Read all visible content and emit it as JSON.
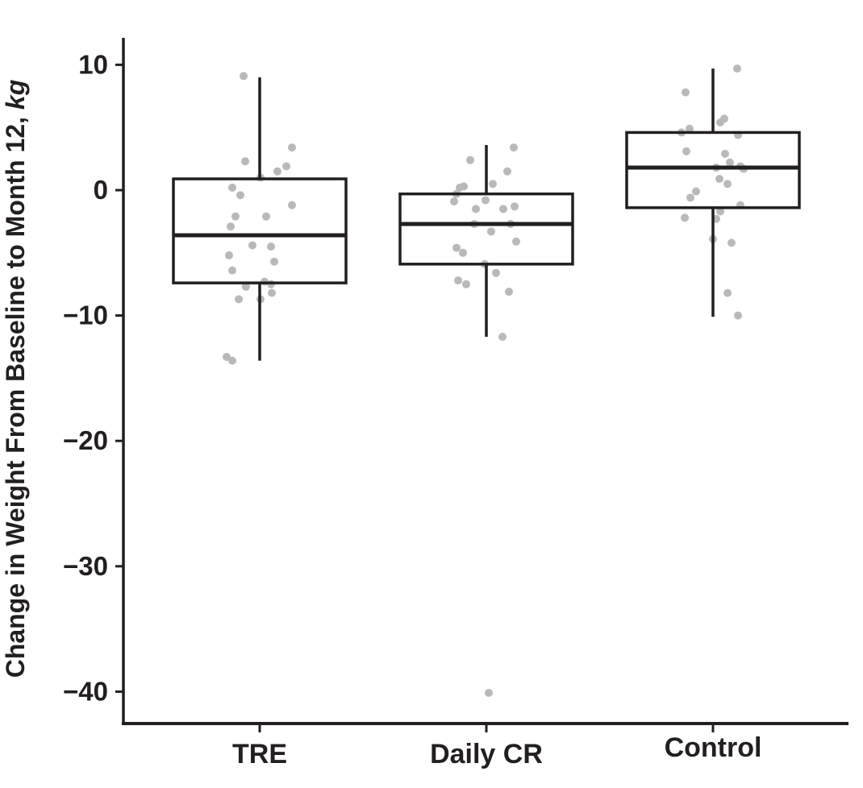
{
  "chart_data": {
    "type": "boxplot",
    "title": "",
    "xlabel": "",
    "ylabel_main": "Change in Weight From Baseline to Month 12, ",
    "ylabel_unit": "kg",
    "ylim": [
      -43,
      12
    ],
    "yticks": [
      10,
      0,
      -10,
      -20,
      -30,
      -40
    ],
    "ytick_labels": [
      "10",
      "0",
      "−10",
      "−20",
      "−30",
      "−40"
    ],
    "categories": [
      "TRE",
      "Daily CR",
      "Control"
    ],
    "grid": false,
    "legend": "none",
    "colors": {
      "line": "#231f20",
      "point": "#b9b9b9",
      "background": "#ffffff"
    },
    "series": [
      {
        "name": "TRE",
        "whisker_high": 9.0,
        "q3": 0.9,
        "median": -3.6,
        "q1": -7.4,
        "whisker_low": -13.6,
        "points": [
          [
            -20,
            9.1
          ],
          [
            40,
            3.4
          ],
          [
            -18,
            2.3
          ],
          [
            33,
            1.9
          ],
          [
            22,
            1.5
          ],
          [
            1,
            1.0
          ],
          [
            -34,
            0.2
          ],
          [
            -24,
            -0.4
          ],
          [
            40,
            -1.2
          ],
          [
            -30,
            -2.1
          ],
          [
            8,
            -2.1
          ],
          [
            -36,
            -2.9
          ],
          [
            -9,
            -4.4
          ],
          [
            14,
            -4.5
          ],
          [
            -38,
            -5.2
          ],
          [
            18,
            -5.7
          ],
          [
            -34,
            -6.4
          ],
          [
            6,
            -7.3
          ],
          [
            14,
            -7.5
          ],
          [
            -17,
            -7.7
          ],
          [
            15,
            -8.2
          ],
          [
            -26,
            -8.7
          ],
          [
            1,
            -8.7
          ],
          [
            -41,
            -13.3
          ],
          [
            -34,
            -13.6
          ]
        ]
      },
      {
        "name": "Daily CR",
        "whisker_high": 3.6,
        "q3": -0.3,
        "median": -2.7,
        "q1": -5.9,
        "whisker_low": -11.7,
        "points": [
          [
            34,
            3.4
          ],
          [
            -20,
            2.4
          ],
          [
            26,
            1.5
          ],
          [
            8,
            0.5
          ],
          [
            -28,
            0.3
          ],
          [
            -33,
            0.2
          ],
          [
            -37,
            -0.3
          ],
          [
            -1,
            -0.8
          ],
          [
            -40,
            -0.9
          ],
          [
            35,
            -1.3
          ],
          [
            -13,
            -1.5
          ],
          [
            21,
            -1.5
          ],
          [
            -15,
            -2.7
          ],
          [
            30,
            -2.7
          ],
          [
            6,
            -3.3
          ],
          [
            37,
            -4.1
          ],
          [
            -37,
            -4.6
          ],
          [
            -29,
            -5.0
          ],
          [
            -2,
            -5.9
          ],
          [
            12,
            -6.6
          ],
          [
            -35,
            -7.2
          ],
          [
            -25,
            -7.5
          ],
          [
            28,
            -8.1
          ],
          [
            20,
            -11.7
          ],
          [
            3,
            -40.1
          ]
        ]
      },
      {
        "name": "Control",
        "whisker_high": 9.7,
        "q3": 4.6,
        "median": 1.8,
        "q1": -1.4,
        "whisker_low": -10.1,
        "points": [
          [
            30,
            9.7
          ],
          [
            -34,
            7.8
          ],
          [
            14,
            5.7
          ],
          [
            9,
            5.4
          ],
          [
            -29,
            4.9
          ],
          [
            -39,
            4.6
          ],
          [
            31,
            4.4
          ],
          [
            -33,
            3.1
          ],
          [
            15,
            2.9
          ],
          [
            21,
            2.2
          ],
          [
            34,
            1.9
          ],
          [
            4,
            1.8
          ],
          [
            38,
            1.7
          ],
          [
            8,
            0.9
          ],
          [
            18,
            0.5
          ],
          [
            -21,
            -0.1
          ],
          [
            -28,
            -0.6
          ],
          [
            34,
            -1.2
          ],
          [
            9,
            -1.7
          ],
          [
            -35,
            -2.2
          ],
          [
            4,
            -2.3
          ],
          [
            0,
            -3.9
          ],
          [
            23,
            -4.2
          ],
          [
            18,
            -8.2
          ],
          [
            31,
            -10.0
          ]
        ]
      }
    ]
  }
}
